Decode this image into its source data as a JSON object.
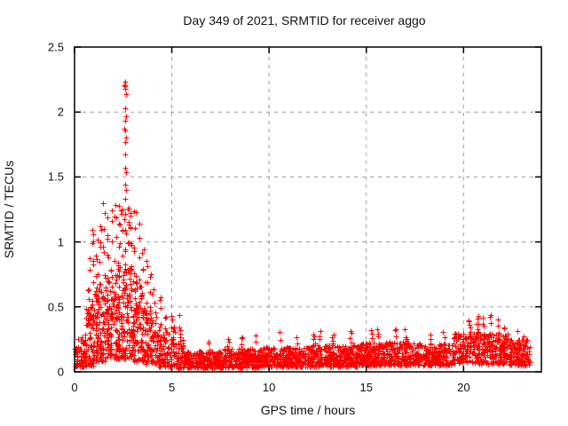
{
  "window": {
    "kind": "gnuplot-style scatter plot image",
    "background": "#ffffff"
  },
  "chart_data": {
    "type": "scatter",
    "title": "Day 349 of 2021, SRMTID for receiver aggo",
    "xlabel": "GPS time / hours",
    "ylabel": "SRMTID / TECUs",
    "xlim": [
      0,
      24
    ],
    "ylim": [
      0,
      2.5
    ],
    "x_data_range": [
      0,
      23.4
    ],
    "xticks": [
      0,
      5,
      10,
      15,
      20
    ],
    "xtick_labels": [
      "0",
      "5",
      "10",
      "15",
      "20"
    ],
    "yticks": [
      0,
      0.5,
      1,
      1.5,
      2,
      2.5
    ],
    "ytick_labels": [
      "0",
      "0.5",
      "1",
      "1.5",
      "2",
      "2.5"
    ],
    "grid": true,
    "grid_color": "#999999",
    "grid_dash": [
      4,
      5
    ],
    "border_color": "#000000",
    "marker": "plus",
    "marker_size_px": 7,
    "marker_color": "#ff0000",
    "max_point": {
      "x": 2.6,
      "y": 2.22
    },
    "description": "Dense TID activity burst between 1h and 5h peaking 2.2 TECUs near 2.6h; quiet noise band ~0.05-0.2 TECUs from 5h to 19h; mild enhancement to ~0.45 TECUs around 20-22h; data ends ~23.4h.",
    "density_bands": [
      [
        0.0,
        0.5,
        0.04,
        0.28,
        60,
        1.6
      ],
      [
        0.5,
        1.0,
        0.05,
        0.5,
        70,
        1.8
      ],
      [
        1.0,
        1.6,
        0.08,
        0.65,
        90,
        1.5
      ],
      [
        1.6,
        2.2,
        0.1,
        0.75,
        100,
        1.5
      ],
      [
        2.2,
        3.0,
        0.1,
        0.85,
        130,
        1.5
      ],
      [
        3.0,
        3.6,
        0.08,
        0.7,
        90,
        1.5
      ],
      [
        3.6,
        4.3,
        0.06,
        0.48,
        85,
        1.5
      ],
      [
        4.3,
        5.2,
        0.04,
        0.35,
        90,
        1.6
      ],
      [
        5.2,
        5.6,
        0.03,
        0.25,
        45,
        1.5
      ],
      [
        5.6,
        7.6,
        0.03,
        0.16,
        230,
        1.2
      ],
      [
        7.6,
        9.6,
        0.03,
        0.18,
        230,
        1.3
      ],
      [
        9.6,
        12.0,
        0.04,
        0.19,
        280,
        1.3
      ],
      [
        12.0,
        14.5,
        0.04,
        0.21,
        290,
        1.3
      ],
      [
        14.5,
        17.5,
        0.05,
        0.23,
        340,
        1.3
      ],
      [
        17.5,
        19.5,
        0.05,
        0.22,
        220,
        1.3
      ],
      [
        19.5,
        22.3,
        0.06,
        0.3,
        300,
        1.2
      ],
      [
        22.3,
        23.4,
        0.05,
        0.25,
        120,
        1.3
      ]
    ],
    "spike_columns": [
      [
        0.75,
        [
          0.35,
          0.45,
          0.55,
          0.65,
          0.78,
          0.88
        ]
      ],
      [
        0.95,
        [
          0.4,
          0.55,
          0.7,
          0.85,
          1.0,
          1.08
        ]
      ],
      [
        1.15,
        [
          0.45,
          0.6,
          0.75,
          0.9,
          1.02
        ]
      ],
      [
        1.3,
        [
          0.5,
          0.68,
          0.85,
          1.0,
          1.12
        ]
      ],
      [
        1.5,
        [
          0.55,
          0.75,
          0.95,
          1.1,
          1.22,
          1.3
        ]
      ],
      [
        1.7,
        [
          0.5,
          0.7,
          0.9,
          1.05,
          1.18
        ]
      ],
      [
        1.9,
        [
          0.55,
          0.8,
          1.0,
          1.15,
          1.25
        ]
      ],
      [
        2.1,
        [
          0.6,
          0.85,
          1.05,
          1.2,
          1.3
        ]
      ],
      [
        2.3,
        [
          0.55,
          0.8,
          1.0,
          1.15,
          1.28
        ]
      ],
      [
        2.45,
        [
          0.6,
          0.9,
          1.1,
          1.25
        ]
      ],
      [
        2.6,
        [
          0.5,
          0.65,
          0.8,
          0.95,
          1.1,
          1.2,
          1.33,
          1.43,
          1.56,
          1.67,
          1.79,
          1.86,
          1.97,
          2.03,
          2.17,
          2.2,
          2.22
        ]
      ],
      [
        2.75,
        [
          0.6,
          0.8,
          1.0,
          1.15,
          1.27
        ]
      ],
      [
        2.9,
        [
          0.55,
          0.78,
          0.98,
          1.12,
          1.22
        ]
      ],
      [
        3.1,
        [
          0.5,
          0.75,
          0.95,
          1.1,
          1.24
        ]
      ],
      [
        3.3,
        [
          0.5,
          0.7,
          0.88,
          1.02,
          1.15
        ]
      ],
      [
        3.5,
        [
          0.45,
          0.62,
          0.8,
          0.95
        ]
      ],
      [
        3.7,
        [
          0.4,
          0.55,
          0.7,
          0.85
        ]
      ],
      [
        3.9,
        [
          0.35,
          0.5,
          0.62,
          0.74
        ]
      ],
      [
        4.1,
        [
          0.3,
          0.45,
          0.55,
          0.65
        ]
      ],
      [
        4.4,
        [
          0.25,
          0.38,
          0.48,
          0.56
        ]
      ],
      [
        4.7,
        [
          0.22,
          0.32,
          0.42
        ]
      ],
      [
        5.0,
        [
          0.25,
          0.33,
          0.42
        ]
      ],
      [
        5.4,
        [
          0.28,
          0.35,
          0.44
        ]
      ],
      [
        6.9,
        [
          0.18,
          0.22
        ]
      ],
      [
        7.9,
        [
          0.2,
          0.25
        ]
      ],
      [
        8.6,
        [
          0.2,
          0.26
        ]
      ],
      [
        9.3,
        [
          0.22,
          0.28
        ]
      ],
      [
        10.6,
        [
          0.24,
          0.3
        ]
      ],
      [
        11.4,
        [
          0.22,
          0.27
        ]
      ],
      [
        12.3,
        [
          0.25,
          0.3
        ]
      ],
      [
        12.6,
        [
          0.26,
          0.31
        ]
      ],
      [
        13.3,
        [
          0.24,
          0.29
        ]
      ],
      [
        14.2,
        [
          0.26,
          0.32
        ]
      ],
      [
        15.3,
        [
          0.26,
          0.31
        ]
      ],
      [
        15.6,
        [
          0.28,
          0.33
        ]
      ],
      [
        16.5,
        [
          0.27,
          0.33
        ]
      ],
      [
        17.0,
        [
          0.28,
          0.34
        ]
      ],
      [
        18.3,
        [
          0.25,
          0.3
        ]
      ],
      [
        19.0,
        [
          0.26,
          0.31
        ]
      ],
      [
        20.3,
        [
          0.3,
          0.36,
          0.4
        ]
      ],
      [
        20.7,
        [
          0.32,
          0.38,
          0.43
        ]
      ],
      [
        21.0,
        [
          0.3,
          0.36,
          0.42
        ]
      ],
      [
        21.4,
        [
          0.3,
          0.37,
          0.44
        ]
      ],
      [
        21.8,
        [
          0.3,
          0.35,
          0.4
        ]
      ],
      [
        22.1,
        [
          0.28,
          0.34
        ]
      ],
      [
        22.8,
        [
          0.25,
          0.3
        ]
      ],
      [
        23.1,
        [
          0.22,
          0.27
        ]
      ]
    ]
  }
}
